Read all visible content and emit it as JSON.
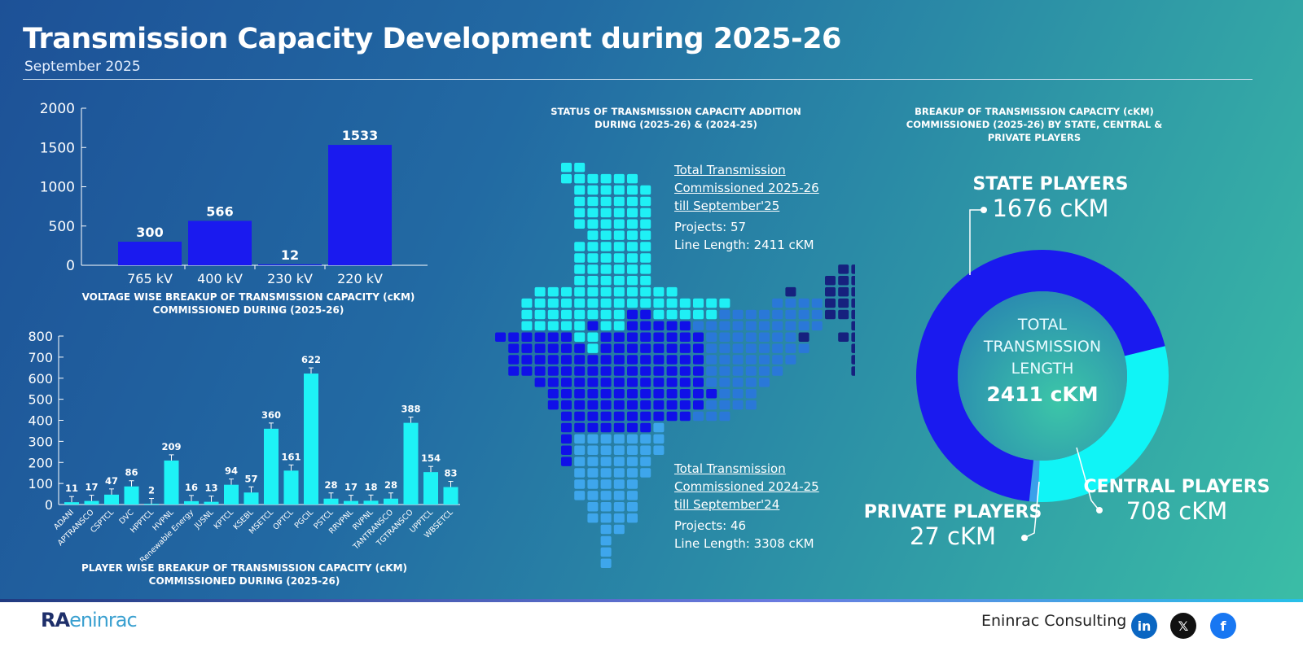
{
  "header": {
    "title": "Transmission Capacity Development during 2025-26",
    "subtitle": "September 2025"
  },
  "chart_data": [
    {
      "type": "bar",
      "title": "VOLTAGE WISE BREAKUP OF TRANSMISSION CAPACITY (cKM) COMMISSIONED DURING (2025-26)",
      "categories": [
        "765 kV",
        "400 kV",
        "230 kV",
        "220 kV"
      ],
      "values": [
        300,
        566,
        12,
        1533
      ],
      "ylim": [
        0,
        2000
      ],
      "yticks": [
        0,
        500,
        1000,
        1500,
        2000
      ],
      "color": "#1a1aef"
    },
    {
      "type": "bar",
      "title": "PLAYER WISE BREAKUP OF TRANSMISSION CAPACITY (cKM) COMMISSIONED DURING (2025-26)",
      "categories": [
        "ADANI",
        "APTRANSCO",
        "CSPTCL",
        "DVC",
        "HPPTCL",
        "HVPNL",
        "Juna Renewable Energy",
        "JUSNL",
        "KPTCL",
        "KSEBL",
        "MSETCL",
        "OPTCL",
        "PGCIL",
        "PSTCL",
        "RRVPNL",
        "RVPNL",
        "TANTRANSCO",
        "TGTRANSCO",
        "UPPTCL",
        "WBSETCL"
      ],
      "values": [
        11,
        17,
        47,
        86,
        2,
        209,
        16,
        13,
        94,
        57,
        360,
        161,
        622,
        28,
        17,
        18,
        28,
        388,
        154,
        83
      ],
      "ylim": [
        0,
        800
      ],
      "yticks": [
        0,
        100,
        200,
        300,
        400,
        500,
        600,
        700,
        800
      ],
      "error_bars": true,
      "color": "#1ef2f6"
    },
    {
      "type": "pie",
      "title": "BREAKUP OF TRANSMISSION CAPACITY (cKM) COMMISSIONED (2025-26) BY STATE, CENTRAL & PRIVATE PLAYERS",
      "center_label": [
        "TOTAL",
        "TRANSMISSION",
        "LENGTH"
      ],
      "center_value": "2411 cKM",
      "slices": [
        {
          "name": "STATE PLAYERS",
          "value": 1676,
          "label": "1676 cKM",
          "color": "#1a1aef"
        },
        {
          "name": "CENTRAL PLAYERS",
          "value": 708,
          "label": "708 cKM",
          "color": "#10f4f6"
        },
        {
          "name": "PRIVATE PLAYERS",
          "value": 27,
          "label": "27 cKM",
          "color": "#3aa0ea"
        }
      ]
    }
  ],
  "map": {
    "title": "STATUS OF TRANSMISSION CAPACITY ADDITION DURING (2025-26) & (2024-25)",
    "current": {
      "heading": [
        "Total Transmission",
        "Commissioned 2025-26",
        "till September'25"
      ],
      "projects": "Projects: 57",
      "length": "Line Length: 2411 cKM"
    },
    "previous": {
      "heading": [
        "Total Transmission",
        "Commissioned 2024-25",
        "till September'24"
      ],
      "projects": "Projects: 46",
      "length": "Line Length: 3308 cKM"
    }
  },
  "footer": {
    "logo_text": "RAC eninrac",
    "brand": "Eninrac Consulting",
    "social": [
      {
        "name": "linkedin",
        "glyph": "in",
        "color": "#0a66c2"
      },
      {
        "name": "x",
        "glyph": "𝕏",
        "color": "#111111"
      },
      {
        "name": "facebook",
        "glyph": "f",
        "color": "#1877f2"
      }
    ]
  }
}
